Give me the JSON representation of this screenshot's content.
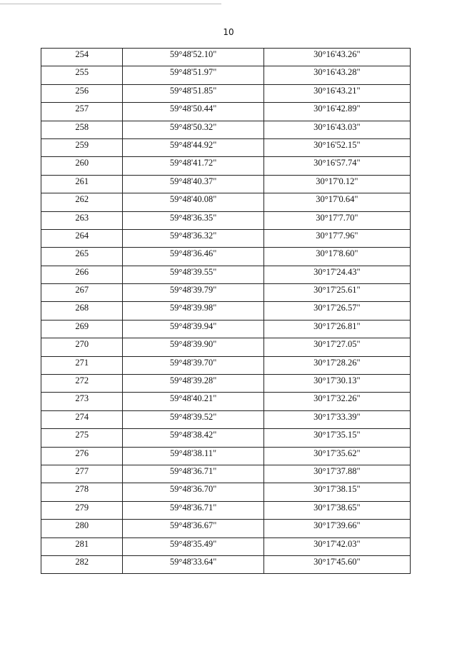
{
  "page_number": "10",
  "rows": [
    [
      "254",
      "59°48'52.10\"",
      "30°16'43.26\""
    ],
    [
      "255",
      "59°48'51.97\"",
      "30°16'43.28\""
    ],
    [
      "256",
      "59°48'51.85\"",
      "30°16'43.21\""
    ],
    [
      "257",
      "59°48'50.44\"",
      "30°16'42.89\""
    ],
    [
      "258",
      "59°48'50.32\"",
      "30°16'43.03\""
    ],
    [
      "259",
      "59°48'44.92\"",
      "30°16'52.15\""
    ],
    [
      "260",
      "59°48'41.72\"",
      "30°16'57.74\""
    ],
    [
      "261",
      "59°48'40.37\"",
      "30°17'0.12\""
    ],
    [
      "262",
      "59°48'40.08\"",
      "30°17'0.64\""
    ],
    [
      "263",
      "59°48'36.35\"",
      "30°17'7.70\""
    ],
    [
      "264",
      "59°48'36.32\"",
      "30°17'7.96\""
    ],
    [
      "265",
      "59°48'36.46\"",
      "30°17'8.60\""
    ],
    [
      "266",
      "59°48'39.55\"",
      "30°17'24.43\""
    ],
    [
      "267",
      "59°48'39.79\"",
      "30°17'25.61\""
    ],
    [
      "268",
      "59°48'39.98\"",
      "30°17'26.57\""
    ],
    [
      "269",
      "59°48'39.94\"",
      "30°17'26.81\""
    ],
    [
      "270",
      "59°48'39.90\"",
      "30°17'27.05\""
    ],
    [
      "271",
      "59°48'39.70\"",
      "30°17'28.26\""
    ],
    [
      "272",
      "59°48'39.28\"",
      "30°17'30.13\""
    ],
    [
      "273",
      "59°48'40.21\"",
      "30°17'32.26\""
    ],
    [
      "274",
      "59°48'39.52\"",
      "30°17'33.39\""
    ],
    [
      "275",
      "59°48'38.42\"",
      "30°17'35.15\""
    ],
    [
      "276",
      "59°48'38.11\"",
      "30°17'35.62\""
    ],
    [
      "277",
      "59°48'36.71\"",
      "30°17'37.88\""
    ],
    [
      "278",
      "59°48'36.70\"",
      "30°17'38.15\""
    ],
    [
      "279",
      "59°48'36.71\"",
      "30°17'38.65\""
    ],
    [
      "280",
      "59°48'36.67\"",
      "30°17'39.66\""
    ],
    [
      "281",
      "59°48'35.49\"",
      "30°17'42.03\""
    ],
    [
      "282",
      "59°48'33.64\"",
      "30°17'45.60\""
    ]
  ]
}
